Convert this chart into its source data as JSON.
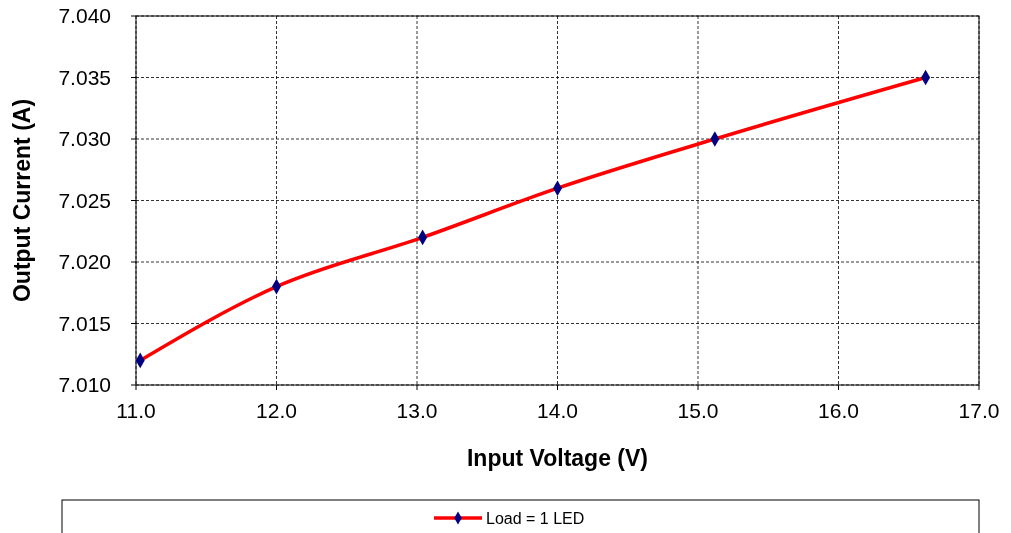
{
  "chart_data": {
    "type": "line",
    "xlabel": "Input Voltage (V)",
    "ylabel": "Output Current (A)",
    "x": [
      11.03,
      12.0,
      13.04,
      14.0,
      15.12,
      16.62
    ],
    "series": [
      {
        "name": "Load = 1 LED",
        "color": "#ff0000",
        "values": [
          7.012,
          7.018,
          7.022,
          7.026,
          7.03,
          7.035
        ]
      }
    ],
    "xlim": [
      11,
      17
    ],
    "ylim": [
      7.01,
      7.04
    ],
    "xticks": [
      {
        "value": 11,
        "label": "11.0"
      },
      {
        "value": 12,
        "label": "12.0"
      },
      {
        "value": 13,
        "label": "13.0"
      },
      {
        "value": 14,
        "label": "14.0"
      },
      {
        "value": 15,
        "label": "15.0"
      },
      {
        "value": 16,
        "label": "16.0"
      },
      {
        "value": 17,
        "label": "17.0"
      }
    ],
    "yticks": [
      {
        "value": 7.01,
        "label": "7.010"
      },
      {
        "value": 7.015,
        "label": "7.015"
      },
      {
        "value": 7.02,
        "label": "7.020"
      },
      {
        "value": 7.025,
        "label": "7.025"
      },
      {
        "value": 7.03,
        "label": "7.030"
      },
      {
        "value": 7.035,
        "label": "7.035"
      },
      {
        "value": 7.04,
        "label": "7.040"
      }
    ],
    "grid": true,
    "legend": "bottom",
    "marker": "diamond",
    "line_style": "solid"
  }
}
